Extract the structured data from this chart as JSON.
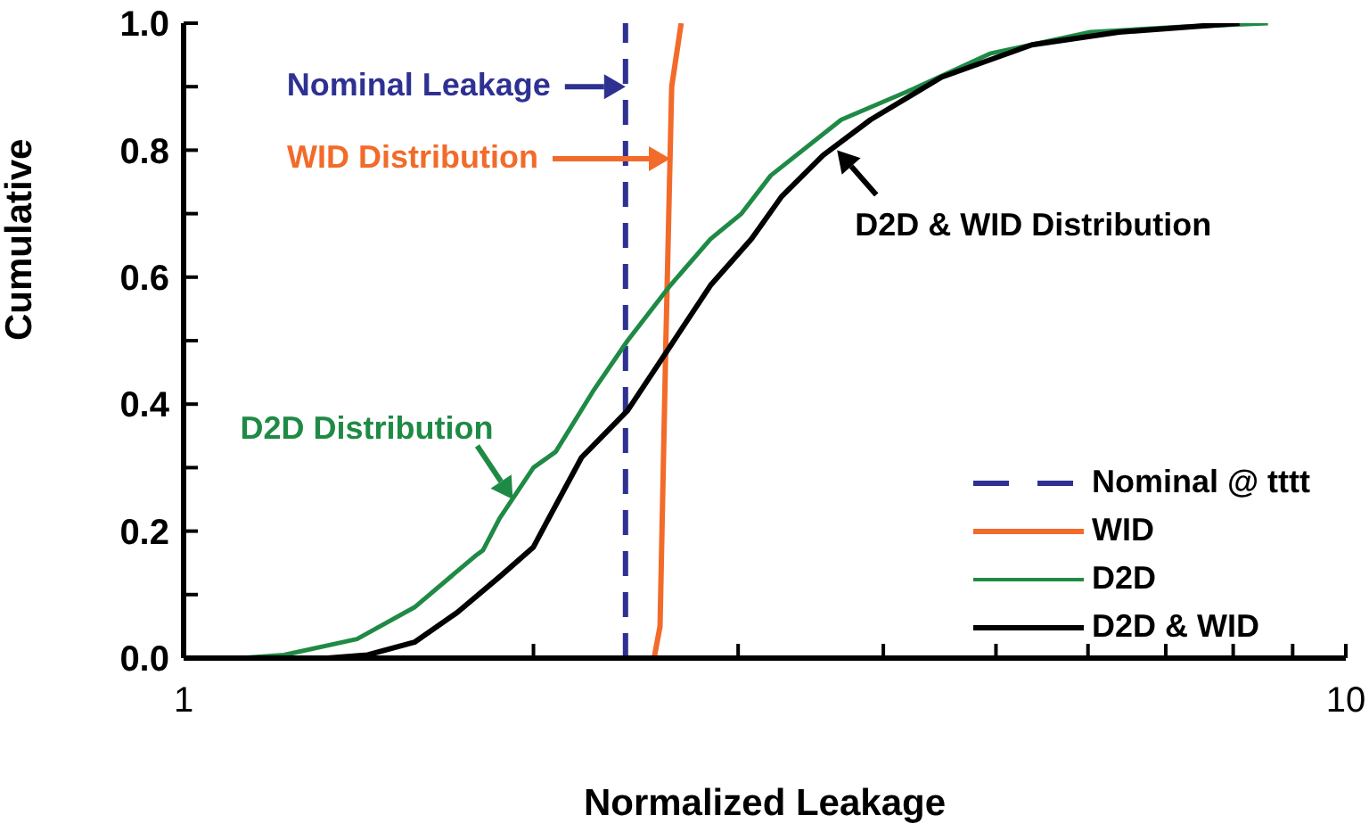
{
  "chart_data": {
    "type": "line",
    "xlabel": "Normalized Leakage",
    "ylabel": "Cumulative",
    "log": "x",
    "xlim": [
      1,
      10
    ],
    "xticks": [
      1,
      {
        "value": 2,
        "label": null
      },
      {
        "value": 3,
        "label": null
      },
      {
        "value": 4,
        "label": null
      },
      {
        "value": 5,
        "label": null
      },
      {
        "value": 6,
        "label": null
      },
      {
        "value": 7,
        "label": null
      },
      {
        "value": 8,
        "label": null
      },
      {
        "value": 9,
        "label": null
      },
      10
    ],
    "ylim": [
      0,
      1
    ],
    "yticks": [
      {
        "value": 0,
        "label": "0.0"
      },
      {
        "value": 0.1,
        "label": null
      },
      {
        "value": 0.2,
        "label": "0.2"
      },
      {
        "value": 0.3,
        "label": null
      },
      {
        "value": 0.4,
        "label": "0.4"
      },
      {
        "value": 0.5,
        "label": null
      },
      {
        "value": 0.6,
        "label": "0.6"
      },
      {
        "value": 0.7,
        "label": null
      },
      {
        "value": 0.8,
        "label": "0.8"
      },
      {
        "value": 0.9,
        "label": null
      },
      {
        "value": 1,
        "label": "1.0"
      }
    ],
    "grid": false,
    "legend": "bottom right",
    "marker": "none",
    "series": [
      {
        "name": "Nominal @ tttt",
        "color": "#2e3192",
        "line_style": "dashed",
        "x": [
          2.4,
          2.4
        ],
        "values": [
          0,
          1
        ]
      },
      {
        "name": "WID",
        "color": "#f26b2a",
        "line_style": "solid",
        "x": [
          2.54,
          2.57,
          2.6,
          2.63,
          2.68
        ],
        "values": [
          0,
          0.05,
          0.5,
          0.9,
          1
        ]
      },
      {
        "name": "D2D",
        "color": "#1f8a45",
        "line_style": "solid",
        "x": [
          1.12,
          1.22,
          1.41,
          1.58,
          1.78,
          1.81,
          1.87,
          2.0,
          2.09,
          2.25,
          2.41,
          2.62,
          2.84,
          3.02,
          3.2,
          3.68,
          4.24,
          4.94,
          6.03,
          7.18,
          8.57
        ],
        "values": [
          0,
          0.005,
          0.03,
          0.08,
          0.16,
          0.17,
          0.22,
          0.3,
          0.325,
          0.42,
          0.5,
          0.586,
          0.66,
          0.7,
          0.76,
          0.848,
          0.896,
          0.952,
          0.986,
          0.994,
          1
        ]
      },
      {
        "name": "D2D & WID",
        "color": "#000000",
        "line_style": "solid",
        "x": [
          1.33,
          1.44,
          1.58,
          1.72,
          1.87,
          2.0,
          2.05,
          2.2,
          2.41,
          2.62,
          2.84,
          3.08,
          3.27,
          3.55,
          3.9,
          4.49,
          5.37,
          6.38,
          8.1
        ],
        "values": [
          0,
          0.005,
          0.025,
          0.072,
          0.128,
          0.175,
          0.212,
          0.316,
          0.39,
          0.49,
          0.587,
          0.66,
          0.727,
          0.792,
          0.848,
          0.915,
          0.966,
          0.986,
          1
        ]
      }
    ],
    "annotations": [
      {
        "text": "Nominal Leakage",
        "x": 2.4,
        "y": 0.9
      },
      "WID Distribution",
      {
        "text": "D2D Distribution",
        "x": 1.92,
        "y": 0.25
      },
      {
        "text": "D2D & WID Distribution",
        "x": 3.65,
        "y": 0.8
      }
    ]
  }
}
